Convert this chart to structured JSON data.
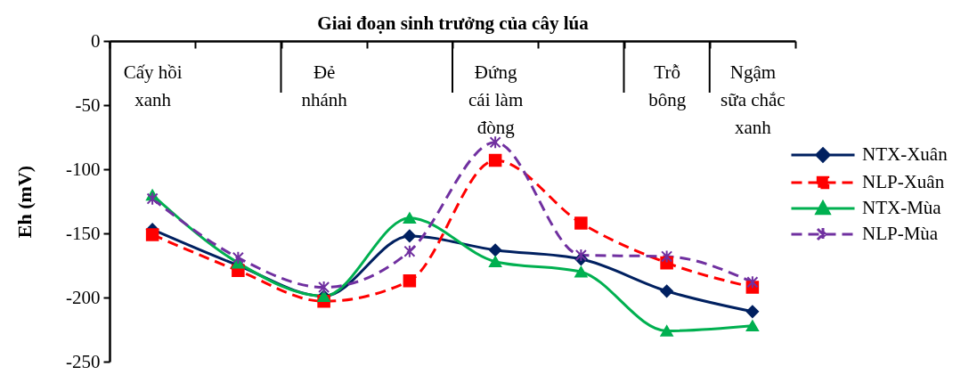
{
  "chart_data": {
    "type": "line",
    "xlabel": "Giai đoạn sinh trưởng của cây lúa",
    "ylabel": "Eh (mV)",
    "categories": [
      "Cấy hồi\nxanh",
      null,
      "Đẻ\nnhánh",
      null,
      "Đứng\ncái làm\nđòng",
      null,
      "Trỗ\nbông",
      "Ngậm\nsữa chắc\nxanh"
    ],
    "series": [
      {
        "name": "NTX-Xuân",
        "color": "#002060",
        "marker": "diamond",
        "line_style": "solid",
        "values": [
          -147,
          -175,
          -199,
          -152,
          -163,
          -170,
          -195,
          -211
        ]
      },
      {
        "name": "NLP-Xuân",
        "color": "#ff0000",
        "marker": "square",
        "line_style": "dashed",
        "values": [
          -151,
          -179,
          -203,
          -187,
          -93,
          -142,
          -173,
          -192
        ]
      },
      {
        "name": "NTX-Mùa",
        "color": "#00b050",
        "marker": "triangle",
        "line_style": "solid",
        "values": [
          -120,
          -173,
          -199,
          -138,
          -172,
          -180,
          -226,
          -222
        ]
      },
      {
        "name": "NLP-Mùa",
        "color": "#7030a0",
        "marker": "cross",
        "line_style": "dashed",
        "values": [
          -123,
          -169,
          -192,
          -164,
          -79,
          -167,
          -168,
          -188
        ]
      }
    ],
    "ylim": [
      -250,
      0
    ],
    "yticks": [
      -250,
      -200,
      -150,
      -100,
      -50,
      0
    ],
    "grid": false,
    "legend": "right"
  }
}
